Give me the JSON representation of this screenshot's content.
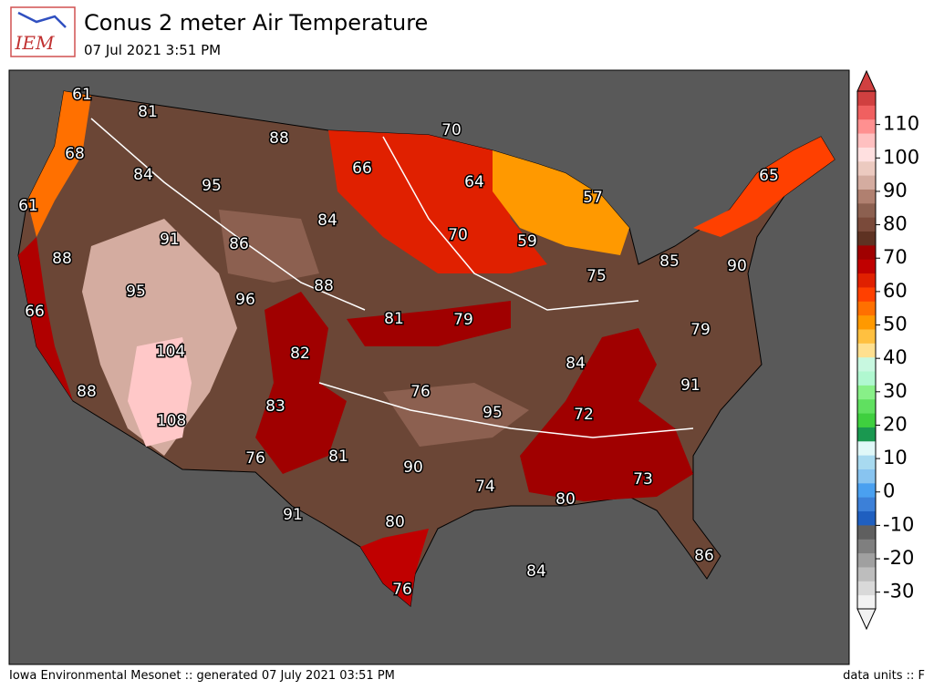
{
  "logo_text": "IEM",
  "title": "Conus 2 meter Air Temperature",
  "subtitle": "07 Jul 2021 3:51 PM",
  "footer_left": "Iowa Environmental Mesonet :: generated 07 July 2021 03:51 PM",
  "footer_right": "data units :: F",
  "colorbar": {
    "lim": [
      -35,
      120
    ],
    "ticks": [
      -30,
      -20,
      -10,
      0,
      10,
      20,
      30,
      40,
      50,
      60,
      70,
      80,
      90,
      100,
      110
    ],
    "colors": [
      "#f2f2f2",
      "#d9d9d9",
      "#bdbdbd",
      "#a0a0a0",
      "#7f7f7f",
      "#5f5f5f",
      "#1f5fc0",
      "#3c80d8",
      "#4aa0f0",
      "#88c4f0",
      "#a8daf0",
      "#e0f8f8",
      "#1a9850",
      "#3fcf3f",
      "#60e060",
      "#88f088",
      "#b0f8d0",
      "#c8f8e0",
      "#ffe090",
      "#ffc040",
      "#ff9900",
      "#ff7000",
      "#ff4000",
      "#e02000",
      "#c00000",
      "#a00000",
      "#5e3222",
      "#7a4a3a",
      "#8c6050",
      "#b08070",
      "#d4aca0",
      "#eccac0",
      "#ffe0e0",
      "#ffc0c0",
      "#ff9090",
      "#f06060",
      "#d04040"
    ]
  },
  "map_labels": [
    61,
    81,
    70,
    88,
    68,
    66,
    84,
    95,
    64,
    65,
    57,
    61,
    84,
    91,
    86,
    70,
    59,
    88,
    85,
    90,
    95,
    88,
    75,
    96,
    66,
    81,
    79,
    82,
    79,
    104,
    84,
    91,
    88,
    76,
    83,
    95,
    72,
    108,
    76,
    81,
    90,
    73,
    74,
    80,
    91,
    80,
    84,
    86,
    76
  ]
}
